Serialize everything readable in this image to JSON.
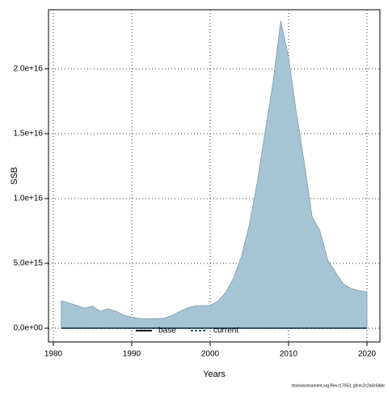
{
  "chart_data": {
    "type": "area",
    "x_label": "Years",
    "y_label": "SSB",
    "footer": "stockassessment.org,Rev.r17052, git:ec2c2a0c6dde",
    "x": [
      1981,
      1982,
      1983,
      1984,
      1985,
      1986,
      1987,
      1988,
      1989,
      1990,
      1991,
      1992,
      1993,
      1994,
      1995,
      1996,
      1997,
      1998,
      1999,
      2000,
      2001,
      2002,
      2003,
      2004,
      2005,
      2006,
      2007,
      2008,
      2009,
      2010,
      2011,
      2012,
      2013,
      2014,
      2015,
      2016,
      2017,
      2018,
      2019,
      2020
    ],
    "values": [
      2100000000000000.0,
      1950000000000000.0,
      1750000000000000.0,
      1550000000000000.0,
      1700000000000000.0,
      1300000000000000.0,
      1500000000000000.0,
      1300000000000000.0,
      1000000000000000.0,
      850000000000000.0,
      750000000000000.0,
      720000000000000.0,
      750000000000000.0,
      750000000000000.0,
      950000000000000.0,
      1250000000000000.0,
      1550000000000000.0,
      1700000000000000.0,
      1750000000000000.0,
      1750000000000000.0,
      2100000000000000.0,
      2750000000000000.0,
      3900000000000000.0,
      5550000000000000.0,
      8000000000000000.0,
      1.125e+16,
      1.51e+16,
      1.89e+16,
      2.37e+16,
      2.09e+16,
      1.66e+16,
      1.28e+16,
      8600000000000000.0,
      7500000000000000.0,
      5250000000000000.0,
      4300000000000000.0,
      3400000000000000.0,
      3050000000000000.0,
      2900000000000000.0,
      2800000000000000.0
    ],
    "color": "#a5c5d5",
    "series": [
      {
        "name": "base",
        "color": "#000000",
        "dashed": false,
        "values": [
          0,
          0,
          0,
          0,
          0,
          0,
          0,
          0,
          0,
          0,
          0,
          0,
          0,
          0,
          0,
          0,
          0,
          0,
          0,
          0,
          0,
          0,
          0,
          0,
          0,
          0,
          0,
          0,
          0,
          0,
          0,
          0,
          0,
          0,
          0,
          0,
          0,
          0,
          0,
          0
        ]
      },
      {
        "name": "current",
        "color": "#1b5e7a",
        "dashed": true,
        "values": [
          0,
          0,
          0,
          0,
          0,
          0,
          0,
          0,
          0,
          0,
          0,
          0,
          0,
          0,
          0,
          0,
          0,
          0,
          0,
          0,
          0,
          0,
          0,
          0,
          0,
          0,
          0,
          0,
          0,
          0,
          0,
          0,
          0,
          0,
          0,
          0,
          0,
          0,
          0,
          0
        ]
      }
    ],
    "xlim": [
      1979.38,
      2021.65
    ],
    "xticks": [
      1980,
      1990,
      2000,
      2010,
      2020
    ],
    "ylim": [
      -1060000000000000.0,
      2.456e+16
    ],
    "yticks": [
      {
        "value": 0,
        "label": "0.0e+00"
      },
      {
        "value": 5000000000000000.0,
        "label": "5.0e+15"
      },
      {
        "value": 1e+16,
        "label": "1.0e+16"
      },
      {
        "value": 1.5e+16,
        "label": "1.5e+16"
      },
      {
        "value": 2e+16,
        "label": "2.0e+16"
      }
    ],
    "grid": true,
    "legend": "bottom"
  }
}
